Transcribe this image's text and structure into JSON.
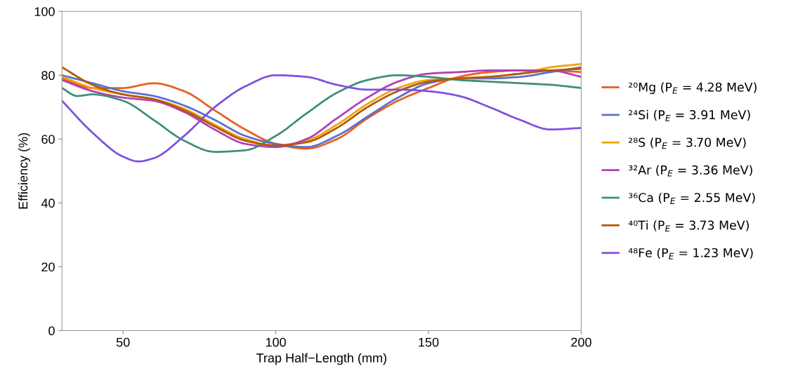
{
  "chart_data": {
    "type": "line",
    "xlabel": "Trap Half−Length (mm)",
    "ylabel": "Efficiency (%)",
    "x": [
      30,
      40,
      50,
      60,
      70,
      80,
      90,
      100,
      110,
      120,
      130,
      140,
      150,
      160,
      170,
      180,
      190,
      200
    ],
    "xlim": [
      30,
      200
    ],
    "xticks": [
      50,
      100,
      150,
      200
    ],
    "ylim": [
      0,
      100
    ],
    "yticks": [
      0,
      20,
      40,
      60,
      80,
      100
    ],
    "grid": false,
    "legend": "right",
    "line_style": "solid",
    "series": [
      {
        "name": "²⁰Mg (P$_{E}$ = 4.28 MeV)",
        "color": "#e8601c",
        "values": [
          79,
          76,
          76,
          77.5,
          75,
          69,
          63,
          58.5,
          57,
          60,
          66.5,
          72,
          76,
          79.5,
          81,
          81.5,
          81.5,
          81
        ]
      },
      {
        "name": "²⁴Si (P$_{E}$ = 3.91 MeV)",
        "color": "#5b6fd0",
        "values": [
          80,
          77.5,
          75,
          73.5,
          70.5,
          66,
          61,
          58.5,
          57.5,
          61,
          67,
          73,
          77.5,
          79,
          79,
          79.5,
          81,
          82.5
        ]
      },
      {
        "name": "²⁸S (P$_{E}$ = 3.70 MeV)",
        "color": "#f0a30a",
        "values": [
          79.5,
          76,
          74,
          72.5,
          69.5,
          64.5,
          60,
          58,
          59.5,
          64.5,
          71,
          76,
          78.5,
          79,
          79.5,
          80.5,
          82.5,
          83.5
        ]
      },
      {
        "name": "³²Ar (P$_{E}$ = 3.36 MeV)",
        "color": "#b440b4",
        "values": [
          78.5,
          75,
          73,
          72,
          68.5,
          63,
          58.5,
          57.5,
          60,
          66.5,
          73,
          78,
          80.5,
          81,
          81.5,
          81.5,
          81.5,
          79.5
        ]
      },
      {
        "name": "³⁶Ca (P$_{E}$ = 2.55 MeV)",
        "color": "#3f8f78",
        "x": [
          30,
          35,
          40,
          50,
          60,
          70,
          80,
          90,
          100,
          110,
          120,
          130,
          140,
          150,
          160,
          170,
          180,
          190,
          200
        ],
        "values": [
          76,
          73.5,
          74,
          72,
          66,
          59.5,
          56,
          56.5,
          61,
          68,
          74.5,
          78.5,
          80,
          79.5,
          78.5,
          78,
          77.5,
          77,
          76
        ]
      },
      {
        "name": "⁴⁰Ti (P$_{E}$ = 3.73 MeV)",
        "color": "#b05a0a",
        "values": [
          82.5,
          77,
          74,
          72.5,
          69,
          64,
          59.5,
          58,
          59,
          63.5,
          70,
          75,
          78,
          79,
          79.5,
          80.5,
          81.5,
          82
        ]
      },
      {
        "name": "⁴⁸Fe (P$_{E}$ = 1.23 MeV)",
        "color": "#8050e0",
        "x": [
          30,
          40,
          50,
          55,
          60,
          70,
          80,
          90,
          100,
          110,
          120,
          130,
          140,
          150,
          160,
          170,
          180,
          190,
          200
        ],
        "values": [
          72,
          62,
          54.5,
          53,
          54,
          61,
          70,
          76.5,
          80,
          79.5,
          77,
          75.5,
          75.5,
          75,
          73.5,
          70,
          66,
          63,
          63.5
        ]
      }
    ]
  }
}
